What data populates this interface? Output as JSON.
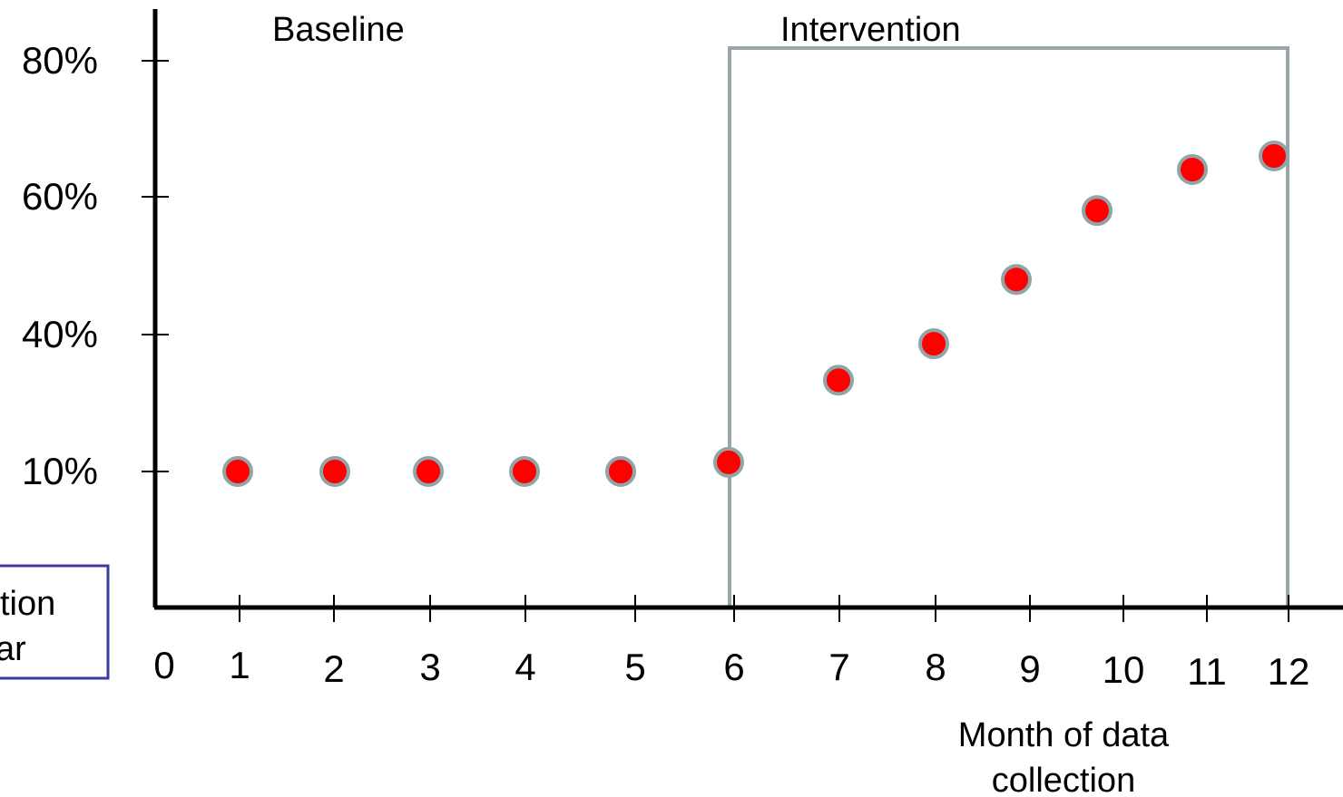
{
  "chart_data": {
    "type": "scatter",
    "y_ticks": [
      "10%",
      "40%",
      "60%",
      "80%"
    ],
    "x_ticks": [
      "0",
      "1",
      "2",
      "3",
      "4",
      "5",
      "6",
      "7",
      "8",
      "9",
      "10",
      "11",
      "12"
    ],
    "points": [
      {
        "x": 1,
        "y": "10%"
      },
      {
        "x": 2,
        "y": "10%"
      },
      {
        "x": 3,
        "y": "10%"
      },
      {
        "x": 4,
        "y": "10%"
      },
      {
        "x": 5,
        "y": "10%"
      },
      {
        "x": 6,
        "y": "12%"
      },
      {
        "x": 7,
        "y": "30%"
      },
      {
        "x": 8,
        "y": "38%"
      },
      {
        "x": 9,
        "y": "48%"
      },
      {
        "x": 10,
        "y": "58%"
      },
      {
        "x": 11,
        "y": "64%"
      },
      {
        "x": 12,
        "y": "66%"
      }
    ],
    "phase_labels": {
      "baseline": "Baseline",
      "intervention": "Intervention"
    },
    "intervention_range": [
      6,
      12
    ],
    "xlabel_line1": "Month of data",
    "xlabel_line2": "collection",
    "legend_fragment": {
      "line1": "tion",
      "line2": "ar"
    },
    "colors": {
      "point_fill": "#ff0000",
      "point_stroke": "#8fa5a8",
      "box": "#95a7a8",
      "legend_border": "#3a3aa0"
    }
  }
}
